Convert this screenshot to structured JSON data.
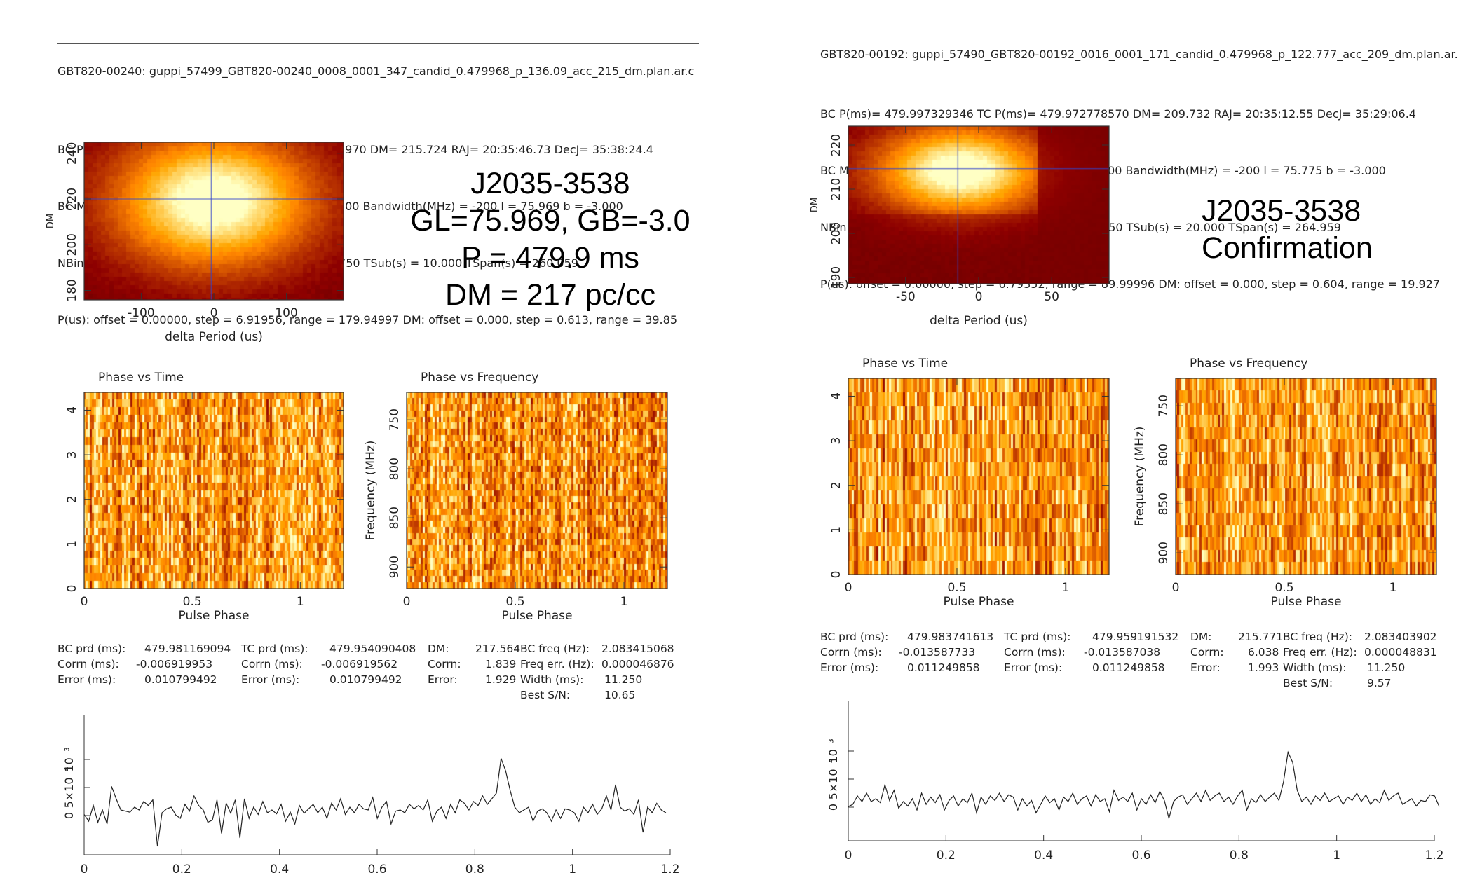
{
  "panels": [
    {
      "id": "left",
      "header": [
        "GBT820-00240: guppi_57499_GBT820-00240_0008_0001_347_candid_0.479968_p_136.09_acc_215_dm.plan.ar.c",
        "BC P(ms)= 479.988089047 TC P(ms)= 479.961009970 DM= 215.724 RAJ= 20:35:46.73 DecJ= 35:38:24.4",
        "BC MJD = 57499.596563 Centre freq(MHz) = 820.000 Bandwidth(MHz) = -200 l = 75.969 b = -3.000",
        "NBin = 128 NChan = 32 NSub = 26 TBin(ms) = 3.750 TSub(s) = 10.000 TSpan(s) = 260.059",
        "P(us): offset = 0.00000, step = 6.91956, range = 179.94997 DM: offset = 0.000, step = 0.613, range = 39.85"
      ],
      "annotation": [
        "J2035-3538",
        "GL=75.969, GB=-3.0",
        "P = 479.9 ms",
        "DM = 217 pc/cc"
      ],
      "dm_plot": {
        "ylabel": "DM",
        "xlabel": "delta Period (us)",
        "xticks": [
          "-100",
          "0",
          "100"
        ],
        "yticks": [
          "180",
          "200",
          "220",
          "240"
        ]
      },
      "pvt": {
        "title": "Phase vs Time",
        "xlabel": "Pulse Phase",
        "xticks": [
          "0",
          "0.5",
          "1"
        ],
        "yticks": [
          "0",
          "1",
          "2",
          "3",
          "4"
        ]
      },
      "pvf": {
        "title": "Phase vs Frequency",
        "xlabel": "Pulse Phase",
        "ylabel": "Frequency (MHz)",
        "xticks": [
          "0",
          "0.5",
          "1"
        ],
        "yticks": [
          "750",
          "800",
          "850",
          "900"
        ]
      },
      "stats": {
        "c1": [
          "BC prd (ms):",
          "Corrn (ms):",
          "Error (ms):"
        ],
        "v1": [
          "479.981169094",
          "-0.006919953",
          "0.010799492"
        ],
        "c2": [
          "TC prd (ms):",
          "Corrn (ms):",
          "Error (ms):"
        ],
        "v2": [
          "479.954090408",
          "-0.006919562",
          "0.010799492"
        ],
        "c3": [
          "DM:",
          "Corrn:",
          "Error:"
        ],
        "v3": [
          "217.564",
          "1.839",
          "1.929"
        ],
        "c4": [
          "BC freq (Hz):",
          "Freq err. (Hz):",
          "Width (ms):",
          "Best S/N:"
        ],
        "v4": [
          "2.083415068",
          "0.000046876",
          "11.250",
          "10.65"
        ]
      },
      "profile": {
        "xticks": [
          "0",
          "0.2",
          "0.4",
          "0.6",
          "0.8",
          "1",
          "1.2"
        ],
        "yticks": [
          "0",
          "5×10⁻⁴",
          "10⁻³"
        ]
      }
    },
    {
      "id": "right",
      "header": [
        "GBT820-00192: guppi_57490_GBT820-00192_0016_0001_171_candid_0.479968_p_122.777_acc_209_dm.plan.ar.",
        "BC P(ms)= 479.997329346 TC P(ms)= 479.972778570 DM= 209.732 RAJ= 20:35:12.55 DecJ= 35:29:06.4",
        "BC MJD = 57490.397213 Centre freq(MHz) = 820.000 Bandwidth(MHz) = -200 l = 75.775 b = -3.000",
        "NBin = 128 NChan = 16 NSub = 14 TBin(ms) = 3.750 TSub(s) = 20.000 TSpan(s) = 264.959",
        "P(us): offset = 0.00000, step = 6.79352, range = 89.99996 DM: offset = 0.000, step = 0.604, range = 19.927"
      ],
      "annotation": [
        "J2035-3538",
        "Confirmation"
      ],
      "dm_plot": {
        "ylabel": "DM",
        "xlabel": "delta Period (us)",
        "xticks": [
          "-50",
          "0",
          "50"
        ],
        "yticks": [
          "190",
          "200",
          "210",
          "220"
        ]
      },
      "pvt": {
        "title": "Phase vs Time",
        "xlabel": "Pulse Phase",
        "xticks": [
          "0",
          "0.5",
          "1"
        ],
        "yticks": [
          "0",
          "1",
          "2",
          "3",
          "4"
        ]
      },
      "pvf": {
        "title": "Phase vs Frequency",
        "xlabel": "Pulse Phase",
        "ylabel": "Frequency (MHz)",
        "xticks": [
          "0",
          "0.5",
          "1"
        ],
        "yticks": [
          "750",
          "800",
          "850",
          "900"
        ]
      },
      "stats": {
        "c1": [
          "BC prd (ms):",
          "Corrn (ms):",
          "Error (ms):"
        ],
        "v1": [
          "479.983741613",
          "-0.013587733",
          "0.011249858"
        ],
        "c2": [
          "TC prd (ms):",
          "Corrn (ms):",
          "Error (ms):"
        ],
        "v2": [
          "479.959191532",
          "-0.013587038",
          "0.011249858"
        ],
        "c3": [
          "DM:",
          "Corrn:",
          "Error:"
        ],
        "v3": [
          "215.771",
          "6.038",
          "1.993"
        ],
        "c4": [
          "BC freq (Hz):",
          "Freq err. (Hz):",
          "Width (ms):",
          "Best S/N:"
        ],
        "v4": [
          "2.083403902",
          "0.000048831",
          "11.250",
          "9.57"
        ]
      },
      "profile": {
        "xticks": [
          "0",
          "0.2",
          "0.4",
          "0.6",
          "0.8",
          "1",
          "1.2"
        ],
        "yticks": [
          "0",
          "5×10⁻⁴",
          "10⁻³"
        ]
      }
    }
  ],
  "chart_data": [
    {
      "type": "line",
      "xlim": [
        0,
        1.2
      ],
      "ylim": [
        -0.0007,
        0.0018
      ],
      "x_step": 0.00938,
      "peak": {
        "x": 0.82,
        "y": 0.00102
      },
      "values": [
        2e-05,
        -0.0001,
        0.00018,
        -0.00012,
        0.0001,
        -0.00015,
        0.00052,
        0.0003,
        0.0001,
        8e-05,
        6e-05,
        0.00015,
        0.0001,
        0.00025,
        0.00018,
        0.00028,
        -0.00055,
        5e-05,
        0.00012,
        0.00015,
        1e-05,
        -5e-05,
        0.0002,
        8e-05,
        0.00035,
        0.00018,
        0.0001,
        -0.00012,
        -8e-05,
        0.00028,
        -0.00032,
        0.00022,
        4e-05,
        0.00028,
        -0.0004,
        0.0003,
        -5e-05,
        0.00015,
        2e-05,
        0.00025,
        5e-05,
        0.0001,
        3e-05,
        0.0002,
        -0.0001,
        6e-05,
        -0.00015,
        0.00018,
        4e-05,
        0.00012,
        0.0002,
        5e-05,
        0.00015,
        -5e-05,
        0.00022,
        0.0001,
        0.0003,
        2e-05,
        0.00015,
        5e-05,
        0.0002,
        0.00012,
        0.0001,
        0.00032,
        -5e-05,
        0.00015,
        0.00025,
        -0.00015,
        8e-05,
        0.0001,
        5e-05,
        0.0002,
        0.00012,
        0.00018,
        0.0001,
        0.00028,
        -0.0001,
        8e-05,
        0.00015,
        -5e-05,
        0.0002,
        5e-05,
        0.00028,
        0.00022,
        0.0001,
        0.00025,
        0.00018,
        0.00035,
        0.0002,
        0.0003,
        0.0004,
        0.00102,
        0.0008,
        0.00045,
        0.00015,
        5e-05,
        0.0001,
        0.00015,
        -0.0001,
        8e-05,
        0.00012,
        5e-05,
        -0.0001,
        0.0001,
        -5e-05,
        0.00012,
        0.0001,
        5e-05,
        -0.0001,
        0.00015,
        5e-05,
        0.0002,
        2e-05,
        0.00012,
        0.00035,
        0.0001,
        0.00055,
        0.00015,
        8e-05,
        0.00012,
        2e-05,
        0.00028,
        -0.0003,
        0.00015,
        5e-05,
        0.00022,
        0.0001,
        5e-05
      ]
    },
    {
      "type": "line",
      "xlim": [
        0,
        1.2
      ],
      "ylim": [
        -0.0006,
        0.0019
      ],
      "x_step": 0.00938,
      "peak": {
        "x": 0.945,
        "y": 0.00098
      },
      "values": [
        1e-05,
        5e-05,
        0.0002,
        0.0001,
        0.00025,
        0.0001,
        0.00015,
        8e-05,
        0.0004,
        0.00012,
        0.0003,
        -2e-05,
        0.0001,
        2e-05,
        0.00015,
        -5e-05,
        0.00025,
        5e-05,
        0.00018,
        8e-05,
        0.00022,
        -5e-05,
        0.00012,
        0.0002,
        2e-05,
        0.00015,
        8e-05,
        0.00025,
        -0.0001,
        0.00018,
        5e-05,
        0.0002,
        0.00012,
        0.00025,
        0.0001,
        0.00022,
        0.00018,
        -5e-05,
        0.00015,
        2e-05,
        0.00012,
        -0.0001,
        5e-05,
        0.0002,
        8e-05,
        0.00015,
        -5e-05,
        0.00018,
        0.0001,
        0.00025,
        5e-05,
        0.00015,
        0.0002,
        2e-05,
        0.00022,
        0.0001,
        0.00015,
        -8e-05,
        0.0003,
        0.00012,
        0.00018,
        0.0001,
        0.00025,
        -5e-05,
        0.00015,
        5e-05,
        0.00022,
        8e-05,
        0.00028,
        0.00012,
        -0.0002,
        0.0001,
        0.00018,
        0.00022,
        5e-05,
        0.00015,
        0.00025,
        0.0001,
        0.0003,
        0.00012,
        0.0002,
        0.00025,
        0.0001,
        0.00018,
        5e-05,
        0.0002,
        0.0003,
        -5e-05,
        0.00015,
        8e-05,
        0.00022,
        0.0001,
        0.00018,
        0.00025,
        0.00012,
        0.00045,
        0.00098,
        0.0008,
        0.0003,
        0.0001,
        0.00018,
        5e-05,
        0.0002,
        0.00012,
        0.00025,
        0.0001,
        0.00015,
        0.0002,
        5e-05,
        0.00018,
        0.00012,
        0.00025,
        0.0001,
        0.00022,
        5e-05,
        0.00015,
        8e-05,
        0.0003,
        0.00012,
        0.0002,
        0.00025,
        5e-05,
        0.0001,
        0.00015,
        2e-05,
        0.00012,
        0.0001,
        0.00022,
        0.0002,
        1e-05
      ]
    }
  ]
}
